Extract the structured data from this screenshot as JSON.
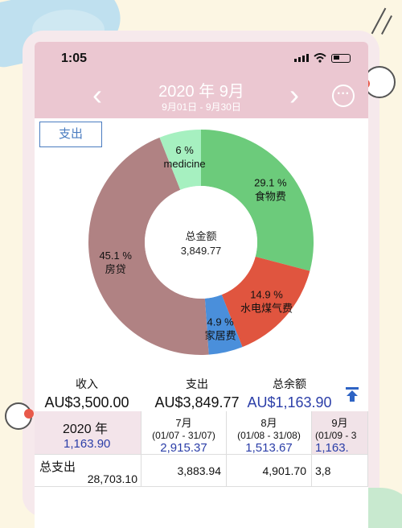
{
  "status": {
    "time": "1:05"
  },
  "header": {
    "title": "2020 年 9月",
    "subtitle": "9月01日 - 9月30日",
    "prev": "‹",
    "next": "›",
    "more": "···"
  },
  "tab": {
    "label": "支出"
  },
  "chart_data": {
    "type": "pie",
    "center_label": "总金额",
    "center_value": "3,849.77",
    "slices": [
      {
        "name": "食物费",
        "percent_label": "29.1 %",
        "value": 29.1,
        "color": "#6ccb7b"
      },
      {
        "name": "水电煤气费",
        "percent_label": "14.9 %",
        "value": 14.9,
        "color": "#e0553f"
      },
      {
        "name": "家居费",
        "percent_label": "4.9 %",
        "value": 4.9,
        "color": "#4a8fdb"
      },
      {
        "name": "房贷",
        "percent_label": "45.1 %",
        "value": 45.1,
        "color": "#b08283"
      },
      {
        "name": "medicine",
        "percent_label": "6 %",
        "value": 6.0,
        "color": "#a6f0c0"
      }
    ]
  },
  "summary": {
    "income_label": "收入",
    "income_value": "AU$3,500.00",
    "expense_label": "支出",
    "expense_value": "AU$3,849.77",
    "balance_label": "总余额",
    "balance_value": "AU$1,163.90"
  },
  "table": {
    "year_label": "2020 年",
    "year_balance": "1,163.90",
    "months": [
      {
        "name": "7月",
        "range": "(01/07 - 31/07)",
        "balance": "2,915.37",
        "total": "3,883.94"
      },
      {
        "name": "8月",
        "range": "(01/08 - 31/08)",
        "balance": "1,513.67",
        "total": "4,901.70"
      },
      {
        "name": "9月",
        "range": "(01/09 - 3",
        "balance": "1,163.",
        "total": "3,8"
      }
    ],
    "total_label": "总支出",
    "total_value": "28,703.10"
  },
  "colors": {
    "header_bg": "#ebc7d1",
    "accent_blue": "#2b3ea8"
  }
}
